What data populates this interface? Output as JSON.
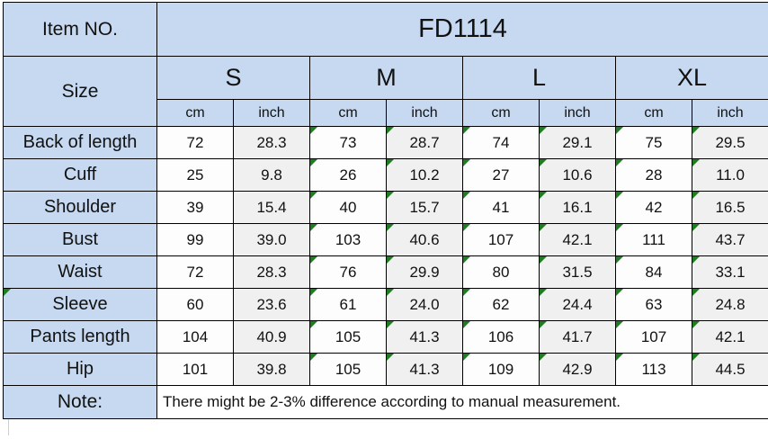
{
  "colors": {
    "header_fill": "#C6D9F1",
    "cm_fill": "#FDFDFD",
    "inch_fill": "#F0F0F0",
    "indicator_green": "#1E7D1E",
    "border": "#000000"
  },
  "table": {
    "item_no": {
      "label": "Item NO.",
      "value": "FD1114"
    },
    "size_label": "Size",
    "size_columns": [
      "S",
      "M",
      "L",
      "XL"
    ],
    "unit_headers": [
      "cm",
      "inch"
    ],
    "indicator_value_columns": [
      2,
      3,
      4,
      5,
      6,
      7
    ],
    "rows": [
      {
        "label": "Back of length",
        "values": [
          "72",
          "28.3",
          "73",
          "28.7",
          "74",
          "29.1",
          "75",
          "29.5"
        ]
      },
      {
        "label": "Cuff",
        "values": [
          "25",
          "9.8",
          "26",
          "10.2",
          "27",
          "10.6",
          "28",
          "11.0"
        ]
      },
      {
        "label": "Shoulder",
        "values": [
          "39",
          "15.4",
          "40",
          "15.7",
          "41",
          "16.1",
          "42",
          "16.5"
        ]
      },
      {
        "label": "Bust",
        "values": [
          "99",
          "39.0",
          "103",
          "40.6",
          "107",
          "42.1",
          "111",
          "43.7"
        ]
      },
      {
        "label": "Waist",
        "values": [
          "72",
          "28.3",
          "76",
          "29.9",
          "80",
          "31.5",
          "84",
          "33.1"
        ]
      },
      {
        "label": "Sleeve",
        "values": [
          "60",
          "23.6",
          "61",
          "24.0",
          "62",
          "24.4",
          "63",
          "24.8"
        ],
        "label_has_indicator": true
      },
      {
        "label": "Pants length",
        "values": [
          "104",
          "40.9",
          "105",
          "41.3",
          "106",
          "41.7",
          "107",
          "42.1"
        ]
      },
      {
        "label": "Hip",
        "values": [
          "101",
          "39.8",
          "105",
          "41.3",
          "109",
          "42.9",
          "113",
          "44.5"
        ]
      }
    ],
    "note": {
      "label": "Note:",
      "text": "There might be 2-3% difference according to manual measurement."
    }
  }
}
